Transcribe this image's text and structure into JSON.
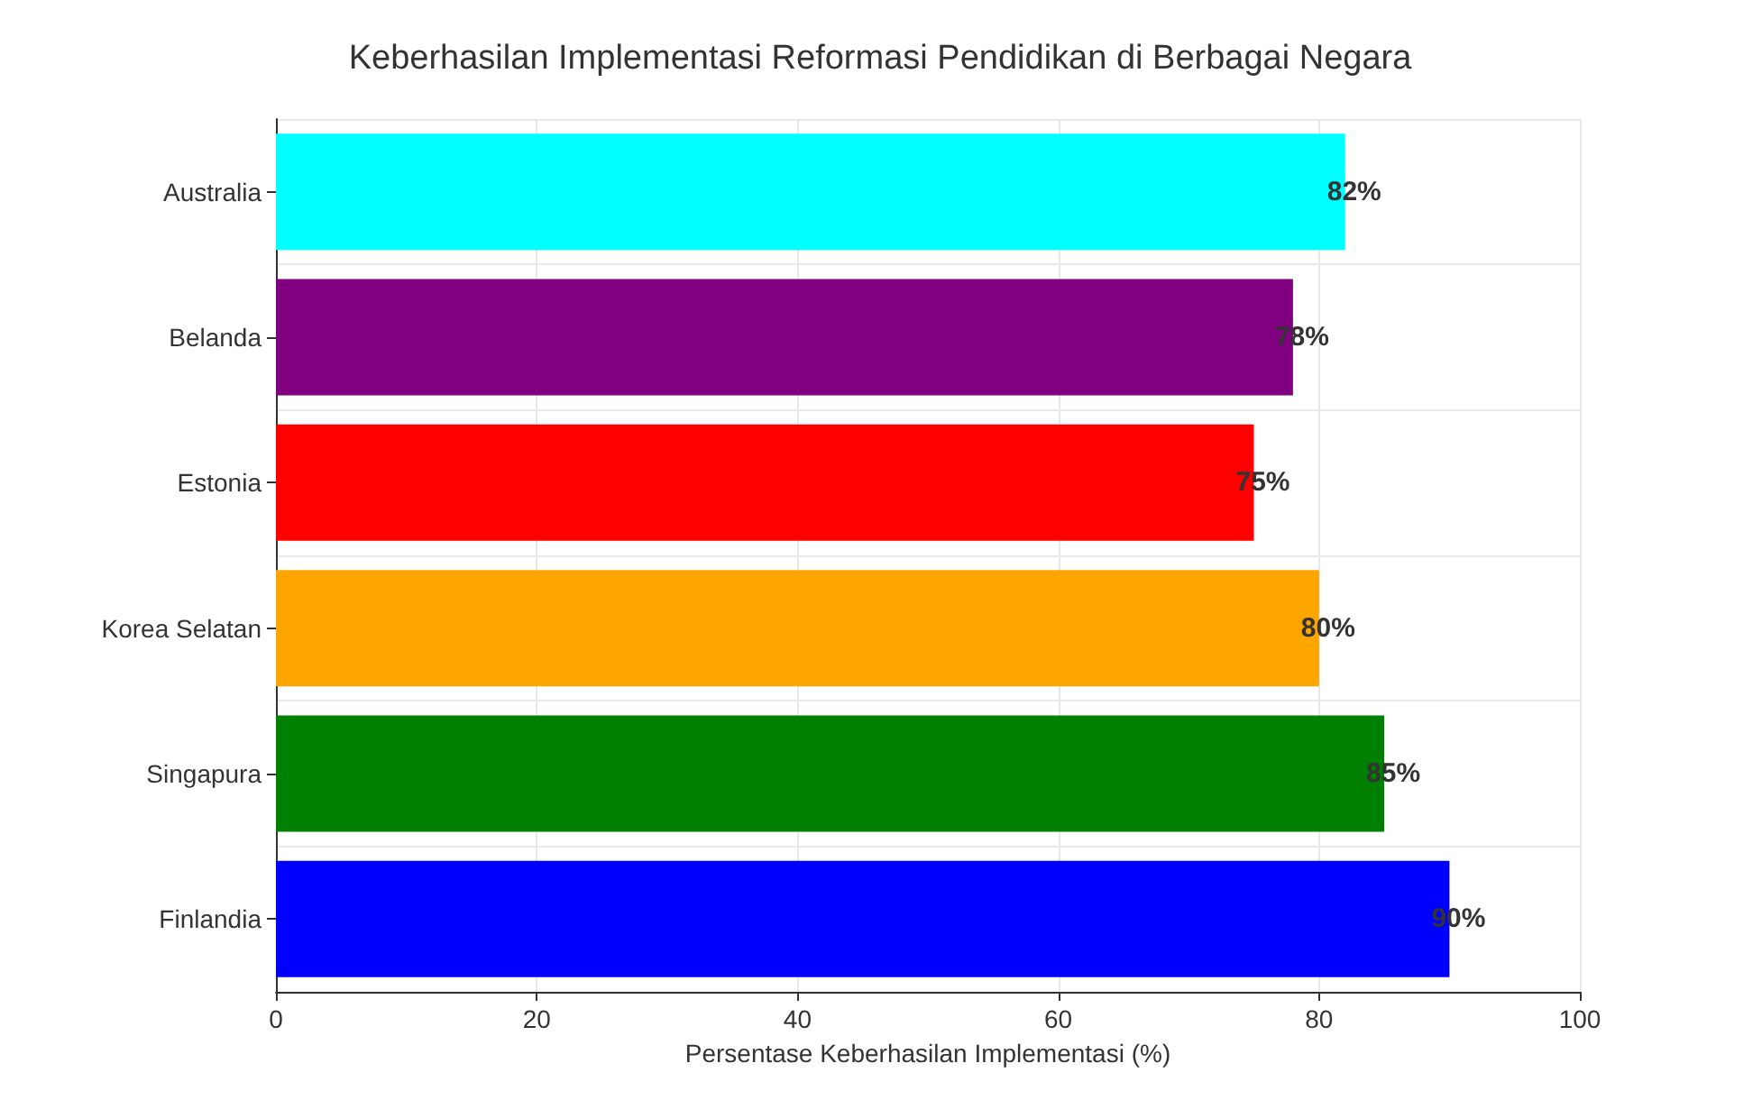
{
  "chart_data": {
    "type": "bar",
    "orientation": "horizontal",
    "title": "Keberhasilan Implementasi Reformasi Pendidikan di Berbagai Negara",
    "xlabel": "Persentase Keberhasilan Implementasi (%)",
    "categories": [
      "Australia",
      "Belanda",
      "Estonia",
      "Korea Selatan",
      "Singapura",
      "Finlandia"
    ],
    "values": [
      82,
      78,
      75,
      80,
      85,
      90
    ],
    "colors": [
      "#00ffff",
      "#800080",
      "#ff0000",
      "#ffa500",
      "#008000",
      "#0000ff"
    ],
    "value_labels": [
      "82%",
      "78%",
      "75%",
      "80%",
      "85%",
      "90%"
    ],
    "xlim": [
      0,
      100
    ],
    "xticks": [
      0,
      20,
      40,
      60,
      80,
      100
    ],
    "grid": true
  }
}
